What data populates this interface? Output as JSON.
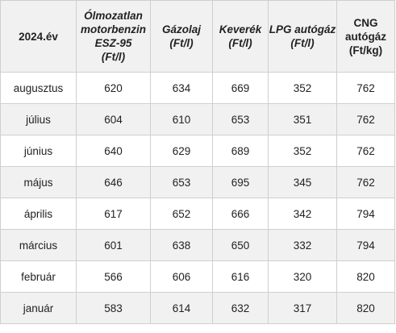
{
  "table": {
    "headers": [
      {
        "lines": [
          "2024.év"
        ]
      },
      {
        "lines": [
          "Ólmozatlan",
          "motorbenzin",
          "ESZ-95",
          "(Ft/l)"
        ]
      },
      {
        "lines": [
          "Gázolaj",
          "(Ft/l)"
        ]
      },
      {
        "lines": [
          "Keverék",
          "(Ft/l)"
        ]
      },
      {
        "lines": [
          "LPG autógáz",
          "(Ft/l)"
        ]
      },
      {
        "lines": [
          "CNG",
          "autógáz",
          "(Ft/kg)"
        ]
      }
    ],
    "rows": [
      [
        "augusztus",
        "620",
        "634",
        "669",
        "352",
        "762"
      ],
      [
        "július",
        "604",
        "610",
        "653",
        "351",
        "762"
      ],
      [
        "június",
        "640",
        "629",
        "689",
        "352",
        "762"
      ],
      [
        "május",
        "646",
        "653",
        "695",
        "345",
        "762"
      ],
      [
        "április",
        "617",
        "652",
        "666",
        "342",
        "794"
      ],
      [
        "március",
        "601",
        "638",
        "650",
        "332",
        "794"
      ],
      [
        "február",
        "566",
        "606",
        "616",
        "320",
        "820"
      ],
      [
        "január",
        "583",
        "614",
        "632",
        "317",
        "820"
      ]
    ]
  }
}
